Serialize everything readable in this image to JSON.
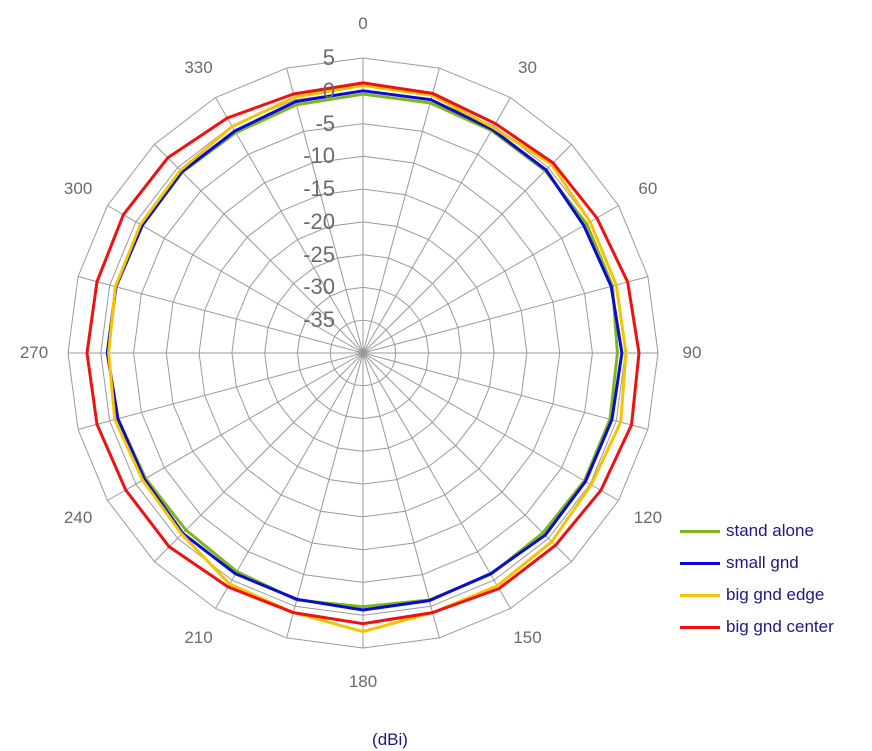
{
  "chart_data": {
    "type": "polar-line",
    "title": "",
    "unit_label": "(dBi)",
    "angles": [
      0,
      15,
      30,
      45,
      60,
      75,
      90,
      105,
      120,
      135,
      150,
      165,
      180,
      195,
      210,
      225,
      240,
      255,
      270,
      285,
      300,
      315,
      330,
      345
    ],
    "angle_labels": [
      "0",
      "30",
      "60",
      "90",
      "120",
      "150",
      "180",
      "210",
      "240",
      "270",
      "300",
      "330"
    ],
    "angle_label_values": [
      0,
      30,
      60,
      90,
      120,
      150,
      180,
      210,
      240,
      270,
      300,
      330
    ],
    "radial_ticks": [
      5,
      0,
      -5,
      -10,
      -15,
      -20,
      -25,
      -30,
      -35
    ],
    "rlim": [
      -40,
      5
    ],
    "legend_position": "right",
    "series": [
      {
        "name": "stand alone",
        "color": "#7db51e",
        "values": [
          -0.5,
          -0.5,
          -0.8,
          -0.7,
          -0.6,
          -0.6,
          -1.2,
          -1.0,
          -1.0,
          -1.2,
          -1.0,
          -1.0,
          -1.3,
          -1.0,
          -1.5,
          -1.8,
          -1.7,
          -1.3,
          -1.0,
          -1.0,
          -1.1,
          -1.0,
          -1.2,
          -0.8
        ]
      },
      {
        "name": "small gnd",
        "color": "#0b0bcf",
        "values": [
          0.0,
          0.0,
          -0.6,
          -0.5,
          -1.1,
          -0.8,
          -0.5,
          -0.7,
          -0.8,
          -0.7,
          -1.1,
          -0.9,
          -0.8,
          -1.1,
          -1.1,
          -1.1,
          -1.5,
          -1.3,
          -1.0,
          -1.0,
          -1.1,
          -0.9,
          -0.9,
          -0.3
        ]
      },
      {
        "name": "big gnd edge",
        "color": "#f5c400",
        "values": [
          0.8,
          0.7,
          -0.3,
          0.7,
          0.0,
          0.0,
          0.1,
          0.7,
          0.2,
          0.7,
          1.0,
          1.0,
          2.5,
          1.0,
          0.7,
          -0.9,
          -1.2,
          -0.8,
          -1.2,
          -0.9,
          -0.8,
          -0.6,
          -0.1,
          0.4
        ]
      },
      {
        "name": "big gnd center",
        "color": "#ee1111",
        "values": [
          1.2,
          1.0,
          0.4,
          1.0,
          1.2,
          1.8,
          2.1,
          2.4,
          1.9,
          1.5,
          1.5,
          1.0,
          1.3,
          1.0,
          1.2,
          1.8,
          1.8,
          2.0,
          2.1,
          2.0,
          2.2,
          2.1,
          1.4,
          0.9
        ]
      }
    ]
  }
}
